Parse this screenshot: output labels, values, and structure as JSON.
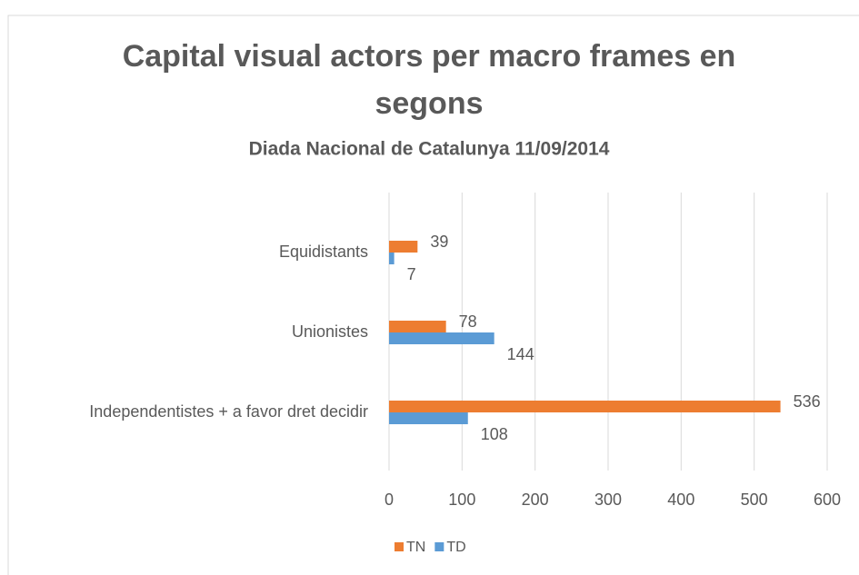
{
  "chart_data": {
    "type": "barh",
    "title": "Capital visual actors per macro frames en segons",
    "subtitle": "Diada Nacional de Catalunya 11/09/2014",
    "categories": [
      "Equidistants",
      "Unionistes",
      "Independentistes + a favor dret decidir"
    ],
    "series": [
      {
        "name": "TN",
        "color": "#ED7D31",
        "values": [
          39,
          78,
          536
        ]
      },
      {
        "name": "TD",
        "color": "#5B9BD5",
        "values": [
          7,
          144,
          108
        ]
      }
    ],
    "xlim": [
      0,
      600
    ],
    "xticks": [
      0,
      100,
      200,
      300,
      400,
      500,
      600
    ],
    "grid": true,
    "legend": "bottom"
  }
}
